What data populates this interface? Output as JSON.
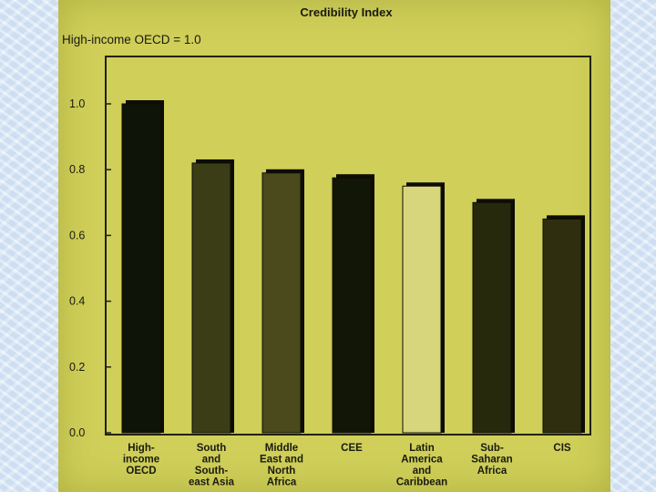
{
  "chart_data": {
    "type": "bar",
    "title": "Credibility Index",
    "subtitle": "High-income OECD = 1.0",
    "categories": [
      [
        "High-",
        "income",
        "OECD"
      ],
      [
        "South",
        "and",
        "South-",
        "east Asia"
      ],
      [
        "Middle",
        "East and",
        "North",
        "Africa"
      ],
      [
        "CEE"
      ],
      [
        "Latin",
        "America",
        "and",
        "Caribbean"
      ],
      [
        "Sub-",
        "Saharan",
        "Africa"
      ],
      [
        "CIS"
      ]
    ],
    "values": [
      1.0,
      0.82,
      0.79,
      0.775,
      0.75,
      0.7,
      0.65
    ],
    "ylim": [
      0,
      1.1
    ],
    "yticks": [
      "0.0",
      "0.2",
      "0.4",
      "0.6",
      "0.8",
      "1.0"
    ],
    "ytick_values": [
      0,
      0.2,
      0.4,
      0.6,
      0.8,
      1.0
    ],
    "bar_colors": [
      "#0f1408",
      "#3a3d16",
      "#4a4a1c",
      "#121606",
      "#d8d67c",
      "#26290c",
      "#2f2f10"
    ],
    "grid": false,
    "legend": "none"
  }
}
